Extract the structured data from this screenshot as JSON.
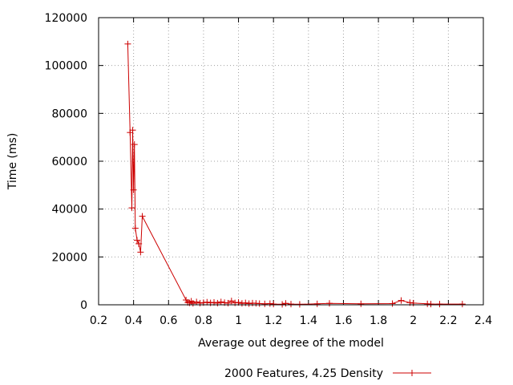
{
  "chart_data": {
    "type": "line",
    "title": "",
    "xlabel": "Average out degree of the model",
    "ylabel": "Time (ms)",
    "xlim": [
      0.2,
      2.4
    ],
    "ylim": [
      0,
      120000
    ],
    "x_ticks": [
      "0.2",
      "0.4",
      "0.6",
      "0.8",
      "1",
      "1.2",
      "1.4",
      "1.6",
      "1.8",
      "2",
      "2.2",
      "2.4"
    ],
    "y_ticks": [
      "0",
      "20000",
      "40000",
      "60000",
      "80000",
      "100000",
      "120000"
    ],
    "grid": true,
    "legend_position": "bottom",
    "series": [
      {
        "name": "2000 Features, 4.25 Density",
        "color": "#cc0000",
        "marker": "plus",
        "points": [
          [
            0.367,
            109000
          ],
          [
            0.38,
            72000
          ],
          [
            0.39,
            40500
          ],
          [
            0.395,
            73000
          ],
          [
            0.4,
            48000
          ],
          [
            0.405,
            67000
          ],
          [
            0.41,
            32000
          ],
          [
            0.42,
            27000
          ],
          [
            0.43,
            25500
          ],
          [
            0.44,
            22000
          ],
          [
            0.45,
            37000
          ],
          [
            0.7,
            2000
          ],
          [
            0.71,
            1000
          ],
          [
            0.72,
            800
          ],
          [
            0.73,
            1500
          ],
          [
            0.74,
            600
          ],
          [
            0.76,
            1200
          ],
          [
            0.78,
            700
          ],
          [
            0.8,
            900
          ],
          [
            0.82,
            1100
          ],
          [
            0.84,
            800
          ],
          [
            0.86,
            1000
          ],
          [
            0.88,
            700
          ],
          [
            0.9,
            1200
          ],
          [
            0.92,
            900
          ],
          [
            0.94,
            700
          ],
          [
            0.96,
            1600
          ],
          [
            0.98,
            800
          ],
          [
            1.0,
            1000
          ],
          [
            1.02,
            600
          ],
          [
            1.04,
            800
          ],
          [
            1.06,
            500
          ],
          [
            1.08,
            700
          ],
          [
            1.1,
            600
          ],
          [
            1.12,
            500
          ],
          [
            1.15,
            400
          ],
          [
            1.18,
            500
          ],
          [
            1.2,
            300
          ],
          [
            1.25,
            200
          ],
          [
            1.27,
            600
          ],
          [
            1.3,
            300
          ],
          [
            1.35,
            200
          ],
          [
            1.45,
            400
          ],
          [
            1.52,
            600
          ],
          [
            1.7,
            400
          ],
          [
            1.88,
            500
          ],
          [
            1.93,
            1800
          ],
          [
            1.98,
            900
          ],
          [
            2.0,
            700
          ],
          [
            2.08,
            400
          ],
          [
            2.1,
            300
          ],
          [
            2.15,
            300
          ],
          [
            2.28,
            300
          ]
        ]
      }
    ]
  }
}
